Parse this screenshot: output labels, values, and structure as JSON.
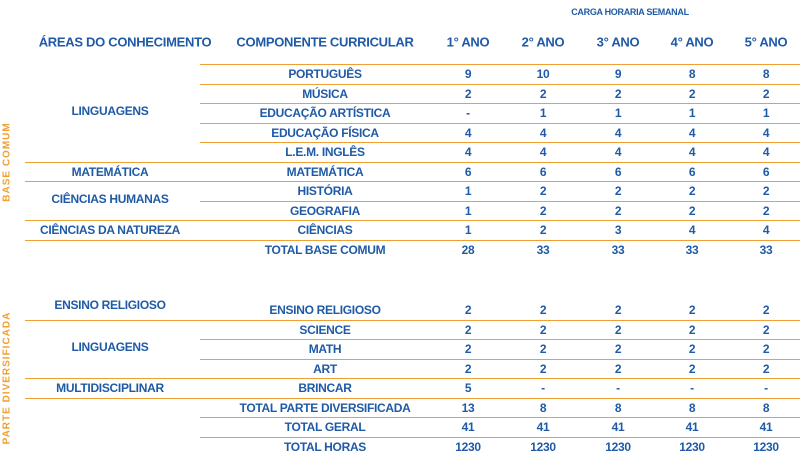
{
  "header": {
    "title": "CARGA HORARIA SEMANAL",
    "columns": [
      "ÁREAS DO CONHECIMENTO",
      "COMPONENTE CURRICULAR",
      "1° ANO",
      "2° ANO",
      "3° ANO",
      "4° ANO",
      "5° ANO"
    ]
  },
  "sections": [
    {
      "label": "BASE COMUM",
      "groups": [
        {
          "area": "LINGUAGENS",
          "rows": [
            {
              "component": "PORTUGUÊS",
              "values": [
                9,
                10,
                9,
                8,
                8
              ]
            },
            {
              "component": "MÚSICA",
              "values": [
                2,
                2,
                2,
                2,
                2
              ]
            },
            {
              "component": "EDUCAÇÃO ARTÍSTICA",
              "values": [
                "-",
                1,
                1,
                1,
                1
              ]
            },
            {
              "component": "EDUCAÇÃO FÍSICA",
              "values": [
                4,
                4,
                4,
                4,
                4
              ]
            },
            {
              "component": "L.E.M. INGLÊS",
              "values": [
                4,
                4,
                4,
                4,
                4
              ]
            }
          ]
        },
        {
          "area": "MATEMÁTICA",
          "rows": [
            {
              "component": "MATEMÁTICA",
              "values": [
                6,
                6,
                6,
                6,
                6
              ]
            }
          ]
        },
        {
          "area": "CIÊNCIAS HUMANAS",
          "rows": [
            {
              "component": "HISTÓRIA",
              "values": [
                1,
                2,
                2,
                2,
                2
              ]
            },
            {
              "component": "GEOGRAFIA",
              "values": [
                1,
                2,
                2,
                2,
                2
              ]
            }
          ]
        },
        {
          "area": "CIÊNCIAS DA NATUREZA",
          "rows": [
            {
              "component": "CIÊNCIAS",
              "values": [
                1,
                2,
                3,
                4,
                4
              ]
            }
          ]
        }
      ],
      "totals": [
        {
          "label": "TOTAL BASE COMUM",
          "values": [
            28,
            33,
            33,
            33,
            33
          ]
        }
      ]
    },
    {
      "label": "PARTE DIVERSIFICADA",
      "groups": [
        {
          "area": "ENSINO RELIGIOSO",
          "rows": [
            {
              "component": "ENSINO RELIGIOSO",
              "values": [
                2,
                2,
                2,
                2,
                2
              ]
            }
          ]
        },
        {
          "area": "LINGUAGENS",
          "rows": [
            {
              "component": "SCIENCE",
              "values": [
                2,
                2,
                2,
                2,
                2
              ]
            },
            {
              "component": "MATH",
              "values": [
                2,
                2,
                2,
                2,
                2
              ]
            },
            {
              "component": "ART",
              "values": [
                2,
                2,
                2,
                2,
                2
              ]
            }
          ]
        },
        {
          "area": "MULTIDISCIPLINAR",
          "rows": [
            {
              "component": "BRINCAR",
              "values": [
                5,
                "-",
                "-",
                "-",
                "-"
              ]
            }
          ]
        }
      ],
      "totals": [
        {
          "label": "TOTAL PARTE DIVERSIFICADA",
          "values": [
            13,
            8,
            8,
            8,
            8
          ]
        },
        {
          "label": "TOTAL GERAL",
          "values": [
            41,
            41,
            41,
            41,
            41
          ]
        },
        {
          "label": "TOTAL HORAS",
          "values": [
            1230,
            1230,
            1230,
            1230,
            1230
          ]
        }
      ]
    }
  ]
}
